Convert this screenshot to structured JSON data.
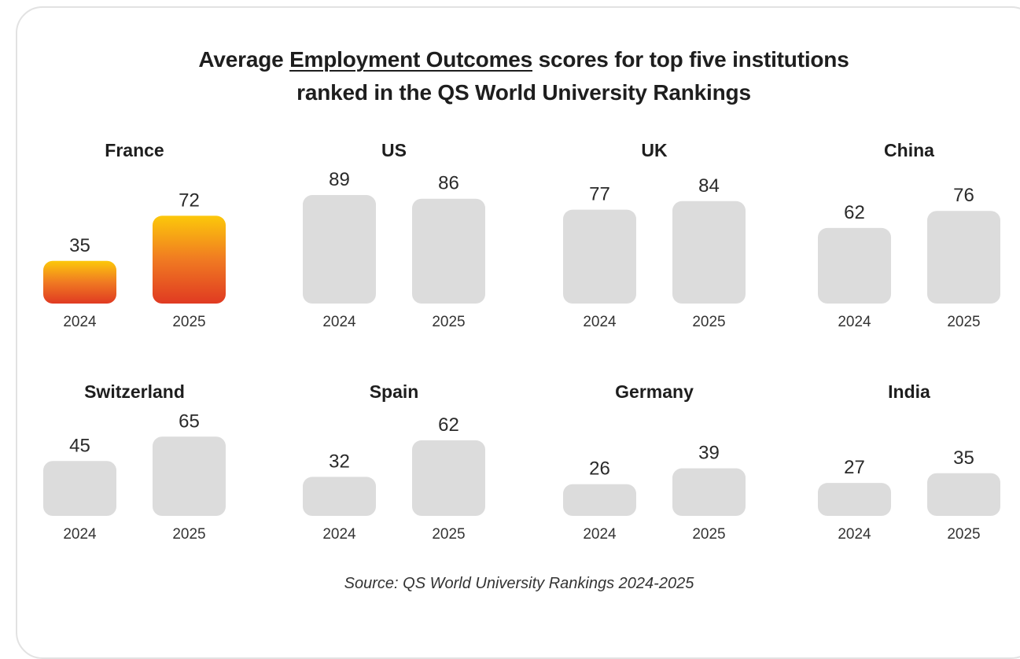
{
  "title": {
    "before": "Average ",
    "highlight": "Employment Outcomes",
    "after": " scores for top five institutions",
    "line2": "ranked in the QS World University Rankings"
  },
  "source": "Source: QS World University Rankings 2024-2025",
  "colors": {
    "highlight_top": "#fcc80a",
    "highlight_mid": "#f07a22",
    "highlight_bottom": "#e03a22",
    "neutral_bar": "#dcdcdc",
    "text": "#1e1e1e"
  },
  "chart_data": {
    "type": "bar",
    "title": "Average Employment Outcomes scores for top five institutions ranked in the QS World University Rankings",
    "categories": [
      "2024",
      "2025"
    ],
    "highlighted_panel": "France",
    "panels": [
      {
        "name": "France",
        "values": [
          35,
          72
        ]
      },
      {
        "name": "US",
        "values": [
          89,
          86
        ]
      },
      {
        "name": "UK",
        "values": [
          77,
          84
        ]
      },
      {
        "name": "China",
        "values": [
          62,
          76
        ]
      },
      {
        "name": "Switzerland",
        "values": [
          45,
          65
        ]
      },
      {
        "name": "Spain",
        "values": [
          32,
          62
        ]
      },
      {
        "name": "Germany",
        "values": [
          26,
          39
        ]
      },
      {
        "name": "India",
        "values": [
          27,
          35
        ]
      }
    ]
  }
}
